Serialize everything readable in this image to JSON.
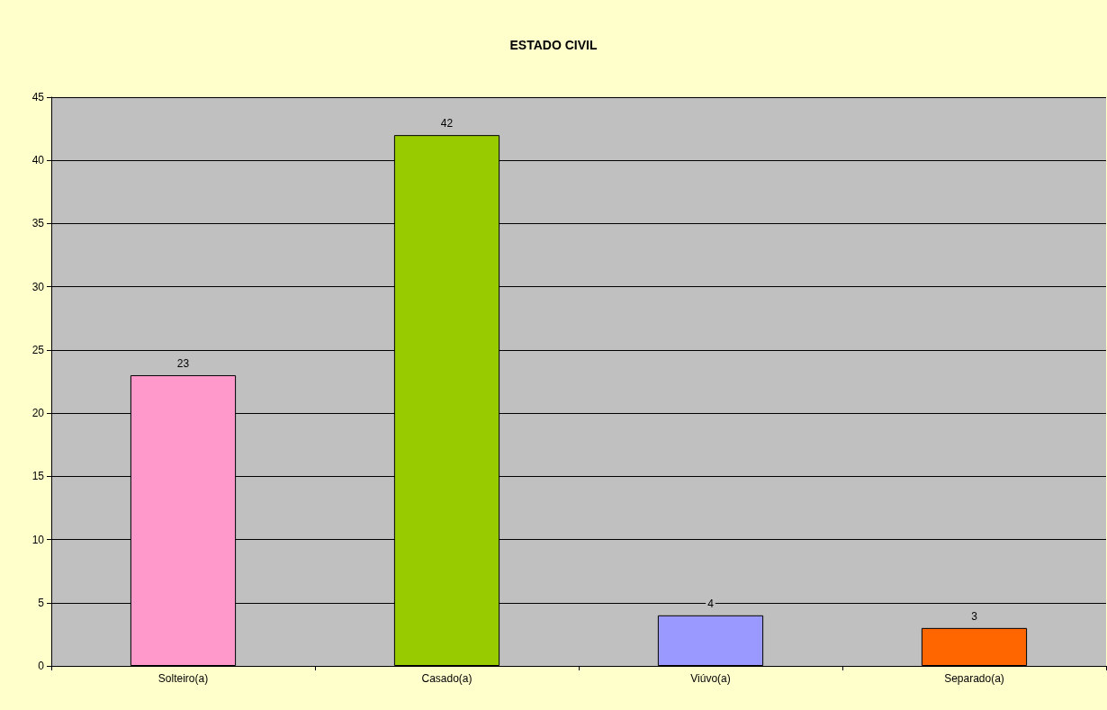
{
  "chart_data": {
    "type": "bar",
    "title": "ESTADO CIVIL",
    "categories": [
      "Solteiro(a)",
      "Casado(a)",
      "Viúvo(a)",
      "Separado(a)"
    ],
    "values": [
      23,
      42,
      4,
      3
    ],
    "colors": [
      "#ff99cc",
      "#99cc00",
      "#9999ff",
      "#ff6600"
    ],
    "ylim": [
      0,
      45
    ],
    "yticks": [
      0,
      5,
      10,
      15,
      20,
      25,
      30,
      35,
      40,
      45
    ],
    "grid": "y",
    "data_labels": true
  }
}
